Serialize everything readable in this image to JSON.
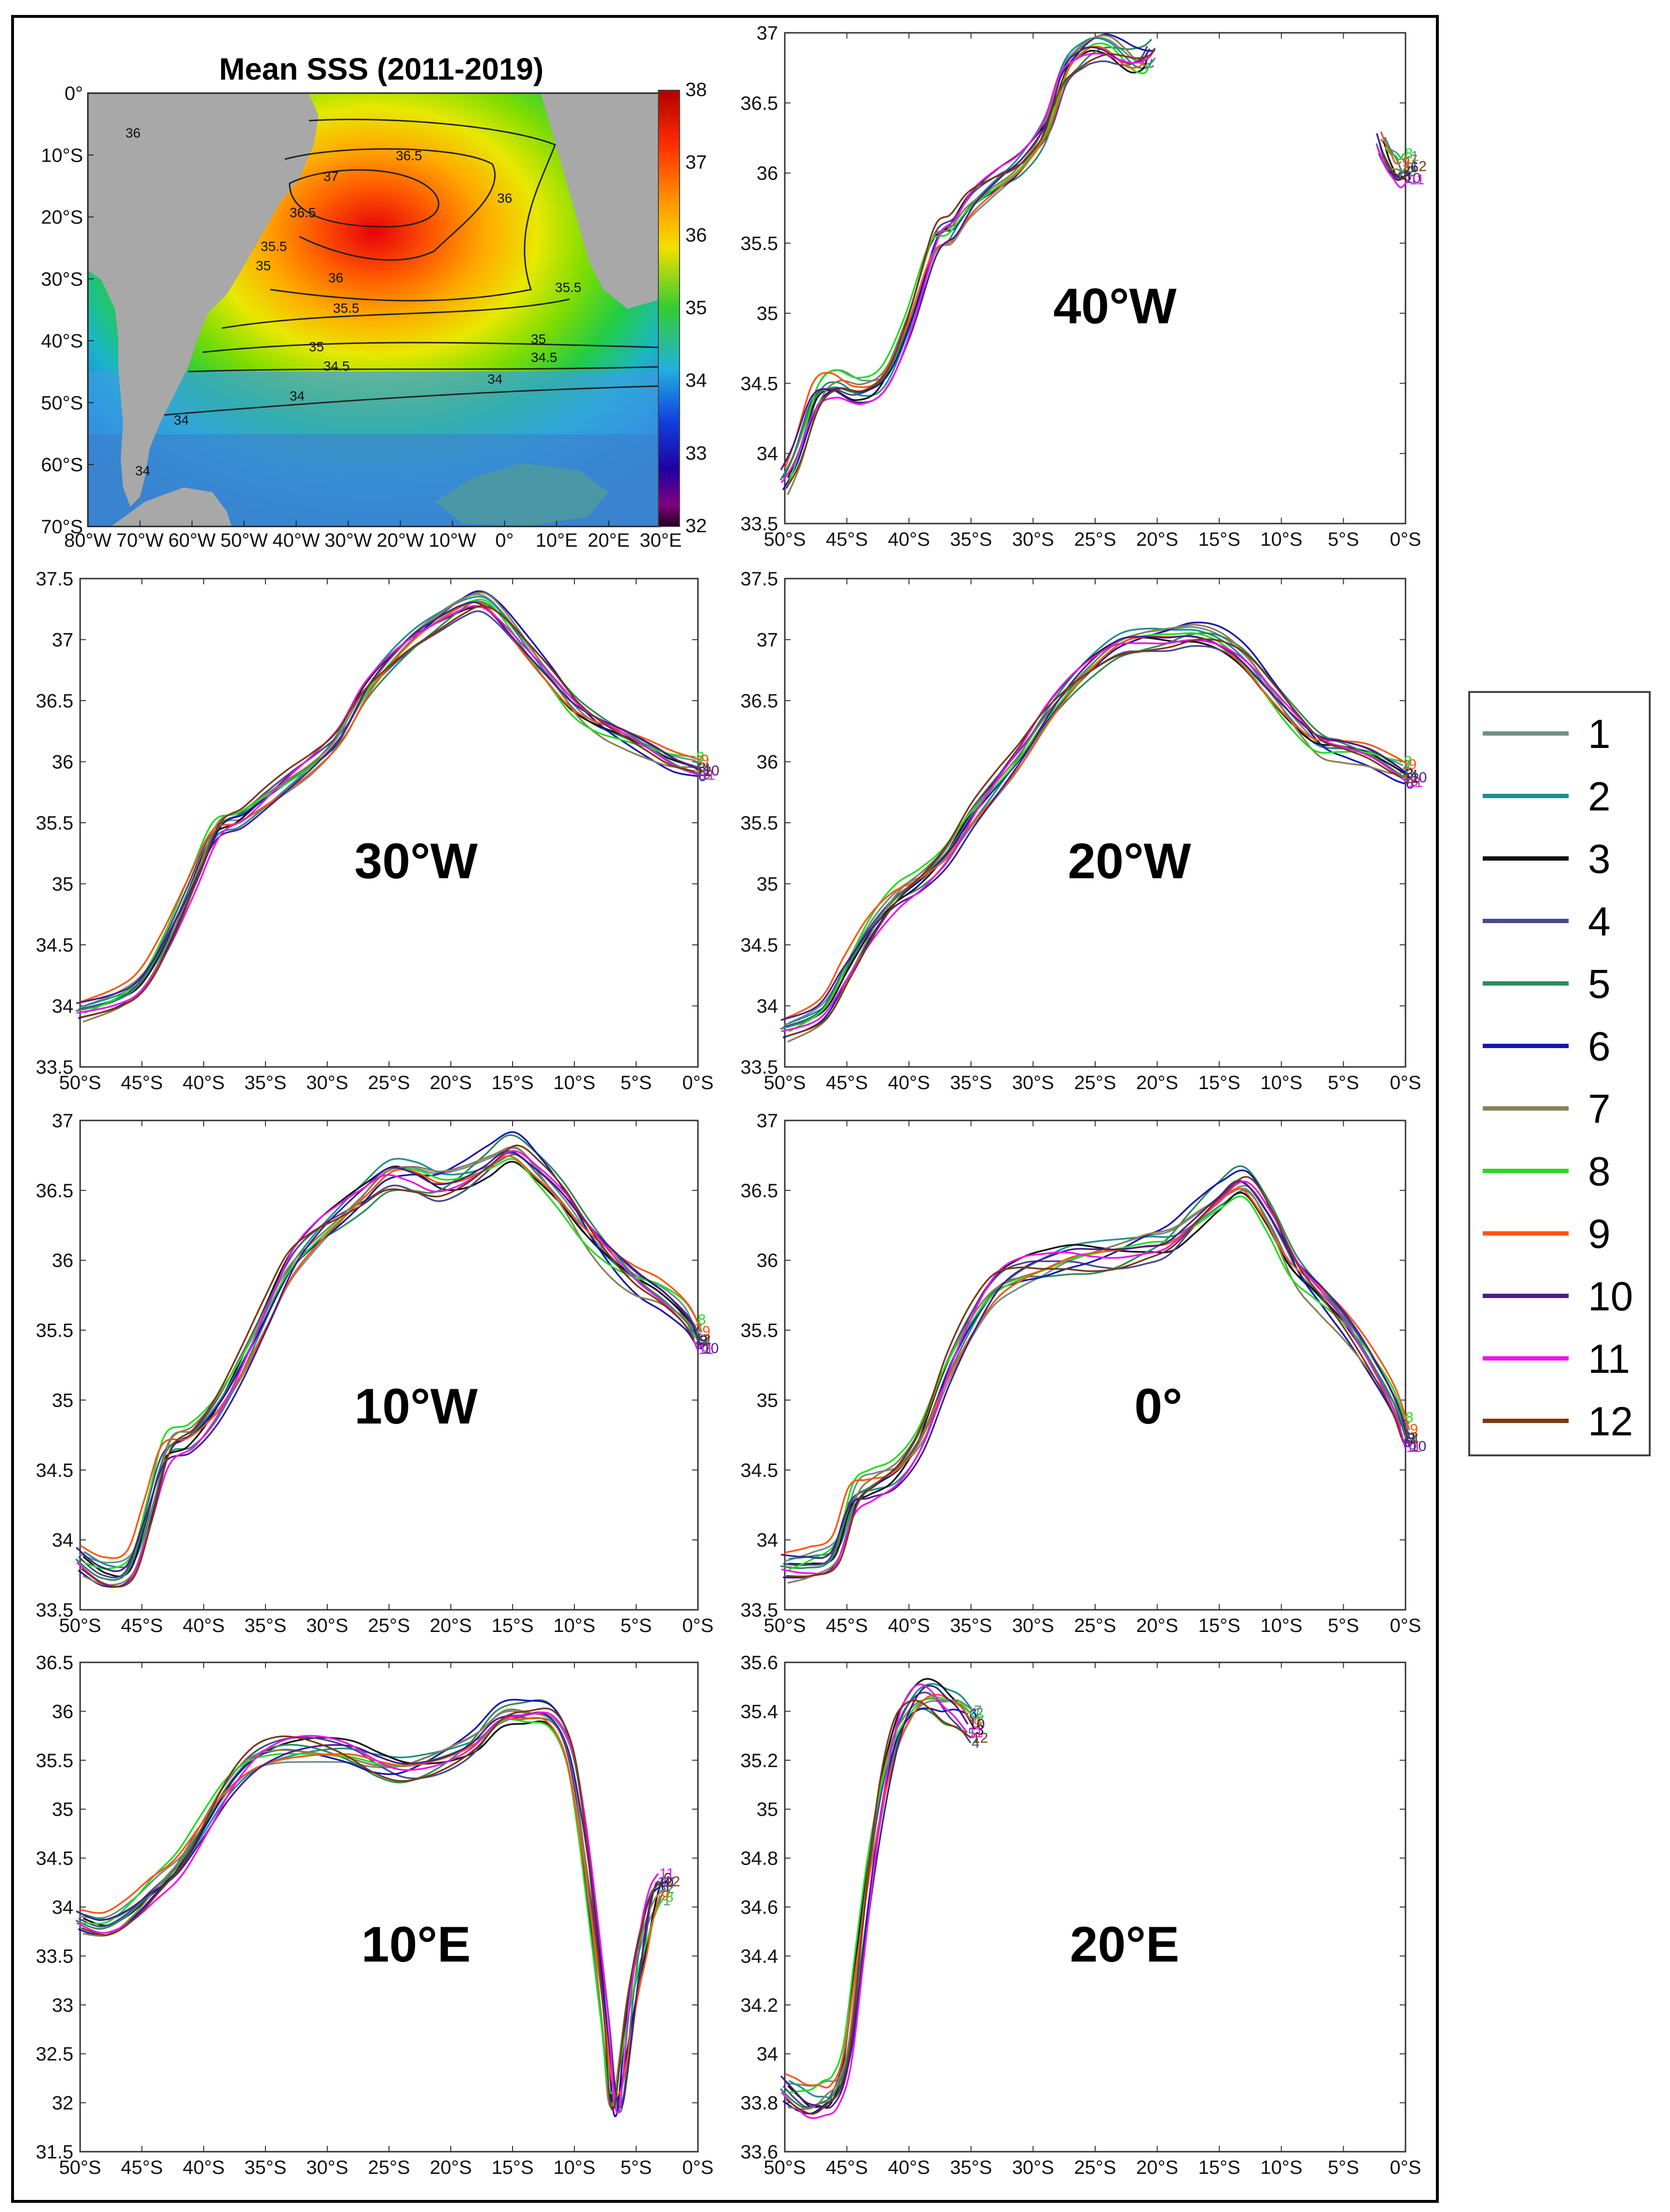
{
  "map": {
    "title": "Mean SSS (2011-2019)",
    "lat_ticks": [
      "0°",
      "10°S",
      "20°S",
      "30°S",
      "40°S",
      "50°S",
      "60°S",
      "70°S"
    ],
    "lon_ticks": [
      "80°W",
      "70°W",
      "60°W",
      "50°W",
      "40°W",
      "30°W",
      "20°W",
      "10°W",
      "0°",
      "10°E",
      "20°E",
      "30°E"
    ],
    "colorbar_ticks": [
      "38",
      "37",
      "36",
      "35",
      "34",
      "33",
      "32"
    ],
    "contour_labels": [
      "36",
      "36.5",
      "37",
      "36",
      "36",
      "35.5",
      "35",
      "34.5",
      "34",
      "35",
      "34",
      "34.5",
      "35.5",
      "34",
      "34",
      "36.5",
      "35.5",
      "35"
    ]
  },
  "legend": {
    "entries": [
      "1",
      "2",
      "3",
      "4",
      "5",
      "6",
      "7",
      "8",
      "9",
      "10",
      "11",
      "12"
    ],
    "colors": [
      "#6f8f8b",
      "#1d8f8f",
      "#111111",
      "#48488f",
      "#2e8b57",
      "#1515b0",
      "#8a7f55",
      "#22dd22",
      "#ff5511",
      "#4b1c8c",
      "#ee11ee",
      "#7a3a10"
    ]
  },
  "chart_data": [
    {
      "type": "line",
      "label": "40°W",
      "xlabel": "",
      "ylabel": "",
      "xlim": [
        -50,
        0
      ],
      "ylim": [
        33.5,
        37
      ],
      "x_ticks": [
        "50°S",
        "45°S",
        "40°S",
        "35°S",
        "30°S",
        "25°S",
        "20°S",
        "15°S",
        "10°S",
        "5°S",
        "0°S"
      ],
      "y_ticks": [
        "33.5",
        "34",
        "34.5",
        "35",
        "35.5",
        "36",
        "36.5",
        "37"
      ],
      "segments": [
        {
          "x": [
            -50,
            -49,
            -47.5,
            -46,
            -44,
            -42,
            -40,
            -38,
            -36.5,
            -35,
            -33,
            -31,
            -29,
            -27.5,
            -26,
            -25,
            -24,
            -23,
            -22,
            -21,
            -20.5
          ],
          "y": [
            33.8,
            34.0,
            34.4,
            34.5,
            34.45,
            34.55,
            34.95,
            35.5,
            35.6,
            35.78,
            35.92,
            36.05,
            36.3,
            36.7,
            36.85,
            36.9,
            36.9,
            36.85,
            36.8,
            36.8,
            36.85
          ]
        },
        {
          "x": [
            -2.0,
            -1.5,
            -1.0,
            -0.5,
            0
          ],
          "y": [
            36.2,
            36.1,
            36.05,
            36.0,
            36.05
          ]
        }
      ],
      "series_spread": 0.07
    },
    {
      "type": "line",
      "label": "30°W",
      "xlabel": "",
      "ylabel": "",
      "xlim": [
        -50,
        0
      ],
      "ylim": [
        33.5,
        37.5
      ],
      "x_ticks": [
        "50°S",
        "45°S",
        "40°S",
        "35°S",
        "30°S",
        "25°S",
        "20°S",
        "15°S",
        "10°S",
        "5°S",
        "0°S"
      ],
      "y_ticks": [
        "33.5",
        "34",
        "34.5",
        "35",
        "35.5",
        "36",
        "36.5",
        "37",
        "37.5"
      ],
      "segments": [
        {
          "x": [
            -50,
            -47,
            -45,
            -43,
            -41,
            -39,
            -37,
            -35,
            -33,
            -31,
            -29,
            -27,
            -25,
            -23,
            -21,
            -19,
            -17.5,
            -16,
            -14,
            -12,
            -10,
            -8,
            -6,
            -4,
            -2,
            0
          ],
          "y": [
            33.95,
            34.05,
            34.2,
            34.55,
            35.0,
            35.45,
            35.55,
            35.7,
            35.85,
            36.0,
            36.2,
            36.55,
            36.8,
            37.0,
            37.15,
            37.28,
            37.32,
            37.2,
            36.95,
            36.7,
            36.45,
            36.3,
            36.2,
            36.1,
            36.0,
            35.95
          ]
        }
      ],
      "series_spread": 0.06
    },
    {
      "type": "line",
      "label": "20°W",
      "xlabel": "",
      "ylabel": "",
      "xlim": [
        -50,
        0
      ],
      "ylim": [
        33.5,
        37.5
      ],
      "x_ticks": [
        "50°S",
        "45°S",
        "40°S",
        "35°S",
        "30°S",
        "25°S",
        "20°S",
        "15°S",
        "10°S",
        "5°S",
        "0°S"
      ],
      "y_ticks": [
        "33.5",
        "34",
        "34.5",
        "35",
        "35.5",
        "36",
        "36.5",
        "37",
        "37.5"
      ],
      "segments": [
        {
          "x": [
            -50,
            -47,
            -45,
            -43,
            -41,
            -39,
            -37,
            -35,
            -33,
            -31,
            -29,
            -27,
            -25,
            -23,
            -21,
            -19,
            -17,
            -15,
            -13,
            -11,
            -9,
            -7,
            -5,
            -3,
            -1,
            0
          ],
          "y": [
            33.8,
            33.95,
            34.3,
            34.65,
            34.9,
            35.05,
            35.25,
            35.55,
            35.8,
            36.05,
            36.35,
            36.6,
            36.8,
            36.95,
            37.0,
            37.02,
            37.05,
            37.0,
            36.85,
            36.6,
            36.35,
            36.15,
            36.1,
            36.05,
            35.95,
            35.9
          ]
        }
      ],
      "series_spread": 0.07
    },
    {
      "type": "line",
      "label": "10°W",
      "xlabel": "",
      "ylabel": "",
      "xlim": [
        -50,
        0
      ],
      "ylim": [
        33.5,
        37
      ],
      "x_ticks": [
        "50°S",
        "45°S",
        "40°S",
        "35°S",
        "30°S",
        "25°S",
        "20°S",
        "15°S",
        "10°S",
        "5°S",
        "0°S"
      ],
      "y_ticks": [
        "33.5",
        "34",
        "34.5",
        "35",
        "35.5",
        "36",
        "36.5",
        "37"
      ],
      "segments": [
        {
          "x": [
            -50,
            -48,
            -46,
            -44.5,
            -43,
            -41,
            -39,
            -37,
            -35,
            -33,
            -31,
            -29,
            -27,
            -25,
            -23,
            -21,
            -19,
            -17,
            -15,
            -13,
            -11,
            -9,
            -7,
            -5,
            -3,
            -1,
            0
          ],
          "y": [
            33.85,
            33.75,
            33.8,
            34.2,
            34.65,
            34.75,
            34.95,
            35.25,
            35.6,
            35.95,
            36.15,
            36.3,
            36.45,
            36.6,
            36.6,
            36.55,
            36.6,
            36.7,
            36.8,
            36.65,
            36.45,
            36.2,
            36.0,
            35.85,
            35.75,
            35.6,
            35.45
          ]
        }
      ],
      "series_spread": 0.08
    },
    {
      "type": "line",
      "label": "0°",
      "xlabel": "",
      "ylabel": "",
      "xlim": [
        -50,
        0
      ],
      "ylim": [
        33.5,
        37
      ],
      "x_ticks": [
        "50°S",
        "45°S",
        "40°S",
        "35°S",
        "30°S",
        "25°S",
        "20°S",
        "15°S",
        "10°S",
        "5°S",
        "0°S"
      ],
      "y_ticks": [
        "33.5",
        "34",
        "34.5",
        "35",
        "35.5",
        "36",
        "36.5",
        "37"
      ],
      "segments": [
        {
          "x": [
            -50,
            -48,
            -46,
            -44.5,
            -43,
            -41,
            -39,
            -37,
            -35,
            -33,
            -31,
            -29,
            -27,
            -25,
            -23,
            -21,
            -19,
            -17,
            -15,
            -13,
            -11,
            -9,
            -7,
            -5,
            -3,
            -1,
            0
          ],
          "y": [
            33.8,
            33.82,
            33.9,
            34.3,
            34.4,
            34.5,
            34.75,
            35.2,
            35.55,
            35.8,
            35.9,
            35.95,
            36.0,
            36.02,
            36.05,
            36.1,
            36.15,
            36.3,
            36.45,
            36.55,
            36.3,
            35.95,
            35.75,
            35.55,
            35.3,
            35.0,
            34.75
          ]
        }
      ],
      "series_spread": 0.08
    },
    {
      "type": "line",
      "label": "10°E",
      "xlabel": "",
      "ylabel": "",
      "xlim": [
        -50,
        0
      ],
      "ylim": [
        31.5,
        36.5
      ],
      "x_ticks": [
        "50°S",
        "45°S",
        "40°S",
        "35°S",
        "30°S",
        "25°S",
        "20°S",
        "15°S",
        "10°S",
        "5°S",
        "0°S"
      ],
      "y_ticks": [
        "31.5",
        "32",
        "32.5",
        "33",
        "33.5",
        "34",
        "34.5",
        "35",
        "35.5",
        "36",
        "36.5"
      ],
      "segments": [
        {
          "x": [
            -50,
            -48,
            -46,
            -44,
            -42,
            -40,
            -38,
            -36,
            -34,
            -32,
            -30,
            -28,
            -26,
            -24,
            -22,
            -20,
            -18,
            -16,
            -14,
            -12,
            -10.5,
            -9.5,
            -8.5,
            -7.5,
            -7,
            -6.5,
            -6,
            -5.5,
            -5,
            -4.5,
            -4,
            -3.5,
            -3
          ],
          "y": [
            33.85,
            33.8,
            33.95,
            34.2,
            34.45,
            34.85,
            35.25,
            35.5,
            35.6,
            35.62,
            35.6,
            35.55,
            35.45,
            35.4,
            35.45,
            35.55,
            35.7,
            35.95,
            35.98,
            35.95,
            35.6,
            34.9,
            33.9,
            32.8,
            32.1,
            32.0,
            32.4,
            32.9,
            33.3,
            33.6,
            33.9,
            34.1,
            34.2
          ]
        }
      ],
      "series_spread": 0.09
    },
    {
      "type": "line",
      "label": "20°E",
      "xlabel": "",
      "ylabel": "",
      "xlim": [
        -50,
        0
      ],
      "ylim": [
        33.6,
        35.6
      ],
      "x_ticks": [
        "50°S",
        "45°S",
        "40°S",
        "35°S",
        "30°S",
        "25°S",
        "20°S",
        "15°S",
        "10°S",
        "5°S",
        "0°S"
      ],
      "y_ticks": [
        "33.6",
        "33.8",
        "34",
        "34.2",
        "34.4",
        "34.6",
        "34.8",
        "35",
        "35.2",
        "35.4",
        "35.6"
      ],
      "segments": [
        {
          "x": [
            -50,
            -49,
            -48,
            -47,
            -46,
            -45,
            -44,
            -43,
            -42,
            -41,
            -40,
            -39,
            -38,
            -37,
            -36,
            -35
          ],
          "y": [
            33.85,
            33.82,
            33.8,
            33.82,
            33.85,
            34.0,
            34.4,
            34.8,
            35.1,
            35.3,
            35.4,
            35.45,
            35.45,
            35.42,
            35.4,
            35.35
          ]
        }
      ],
      "series_spread": 0.05
    }
  ]
}
